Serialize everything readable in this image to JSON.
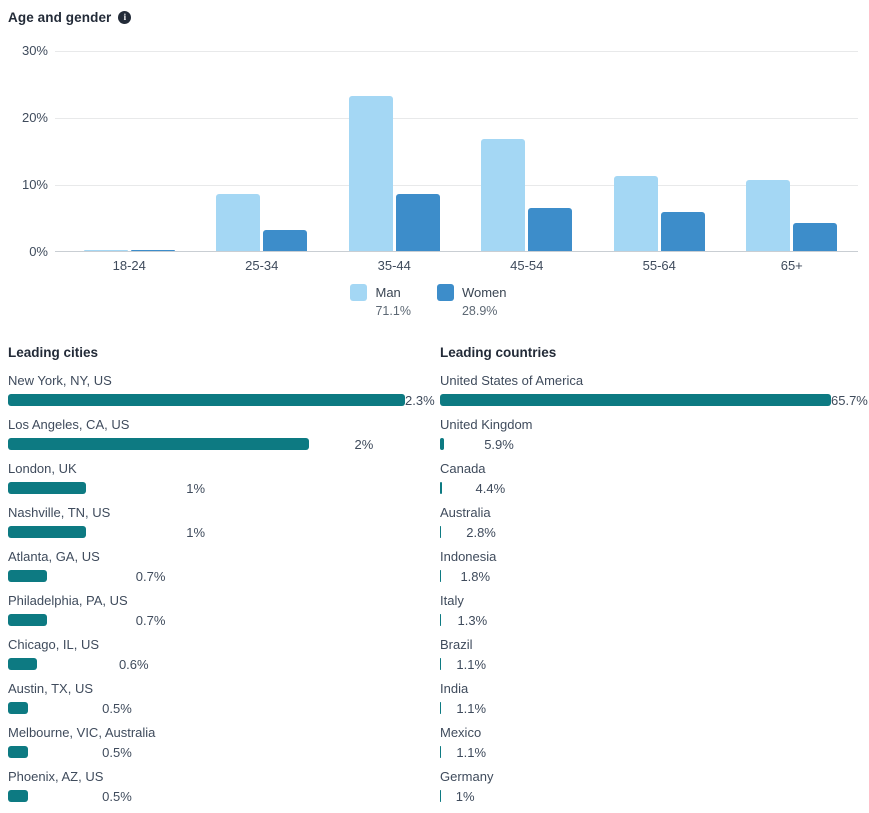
{
  "colors": {
    "man": "#a4d7f4",
    "women": "#3d8dca",
    "teal": "#0d7a82",
    "grid": "#e8e9ea",
    "axis_line": "#c9ced3"
  },
  "header": {
    "title": "Age and gender",
    "info_icon_glyph": "i"
  },
  "chart_data": [
    {
      "id": "age-and-gender",
      "type": "bar",
      "title": "Age and gender",
      "categories": [
        "18-24",
        "25-34",
        "35-44",
        "45-54",
        "55-64",
        "65+"
      ],
      "series": [
        {
          "name": "Man",
          "share_label": "71.1%",
          "values": [
            0.2,
            8.6,
            23.2,
            16.8,
            11.3,
            10.6
          ]
        },
        {
          "name": "Women",
          "share_label": "28.9%",
          "values": [
            0.2,
            3.1,
            8.5,
            6.4,
            5.9,
            4.2
          ]
        }
      ],
      "yticks": [
        "30%",
        "20%",
        "10%",
        "0%"
      ],
      "ylim": [
        0,
        30
      ],
      "grid": true,
      "legend_position": "bottom"
    },
    {
      "id": "leading-cities",
      "type": "bar",
      "orientation": "horizontal",
      "title": "Leading cities",
      "xlim": [
        0,
        2.3
      ],
      "items": [
        {
          "label": "New York, NY, US",
          "value": 2.3,
          "value_label": "2.3%"
        },
        {
          "label": "Los Angeles, CA, US",
          "value": 2.0,
          "value_label": "2%"
        },
        {
          "label": "London, UK",
          "value": 1.0,
          "value_label": "1%"
        },
        {
          "label": "Nashville, TN, US",
          "value": 1.0,
          "value_label": "1%"
        },
        {
          "label": "Atlanta, GA, US",
          "value": 0.7,
          "value_label": "0.7%"
        },
        {
          "label": "Philadelphia, PA, US",
          "value": 0.7,
          "value_label": "0.7%"
        },
        {
          "label": "Chicago, IL, US",
          "value": 0.6,
          "value_label": "0.6%"
        },
        {
          "label": "Austin, TX, US",
          "value": 0.5,
          "value_label": "0.5%"
        },
        {
          "label": "Melbourne, VIC, Australia",
          "value": 0.5,
          "value_label": "0.5%"
        },
        {
          "label": "Phoenix, AZ, US",
          "value": 0.5,
          "value_label": "0.5%"
        }
      ]
    },
    {
      "id": "leading-countries",
      "type": "bar",
      "orientation": "horizontal",
      "title": "Leading countries",
      "xlim": [
        0,
        65.7
      ],
      "items": [
        {
          "label": "United States of America",
          "value": 65.7,
          "value_label": "65.7%"
        },
        {
          "label": "United Kingdom",
          "value": 5.9,
          "value_label": "5.9%"
        },
        {
          "label": "Canada",
          "value": 4.4,
          "value_label": "4.4%"
        },
        {
          "label": "Australia",
          "value": 2.8,
          "value_label": "2.8%"
        },
        {
          "label": "Indonesia",
          "value": 1.8,
          "value_label": "1.8%"
        },
        {
          "label": "Italy",
          "value": 1.3,
          "value_label": "1.3%"
        },
        {
          "label": "Brazil",
          "value": 1.1,
          "value_label": "1.1%"
        },
        {
          "label": "India",
          "value": 1.1,
          "value_label": "1.1%"
        },
        {
          "label": "Mexico",
          "value": 1.1,
          "value_label": "1.1%"
        },
        {
          "label": "Germany",
          "value": 1.0,
          "value_label": "1%"
        }
      ]
    }
  ]
}
